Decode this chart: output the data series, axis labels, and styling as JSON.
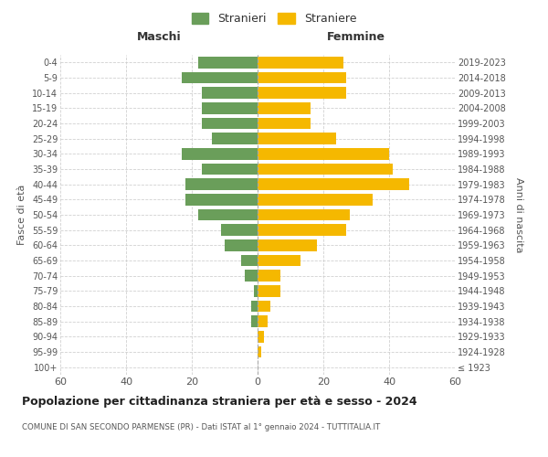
{
  "age_groups": [
    "100+",
    "95-99",
    "90-94",
    "85-89",
    "80-84",
    "75-79",
    "70-74",
    "65-69",
    "60-64",
    "55-59",
    "50-54",
    "45-49",
    "40-44",
    "35-39",
    "30-34",
    "25-29",
    "20-24",
    "15-19",
    "10-14",
    "5-9",
    "0-4"
  ],
  "birth_years": [
    "≤ 1923",
    "1924-1928",
    "1929-1933",
    "1934-1938",
    "1939-1943",
    "1944-1948",
    "1949-1953",
    "1954-1958",
    "1959-1963",
    "1964-1968",
    "1969-1973",
    "1974-1978",
    "1979-1983",
    "1984-1988",
    "1989-1993",
    "1994-1998",
    "1999-2003",
    "2004-2008",
    "2009-2013",
    "2014-2018",
    "2019-2023"
  ],
  "maschi": [
    0,
    0,
    0,
    2,
    2,
    1,
    4,
    5,
    10,
    11,
    18,
    22,
    22,
    17,
    23,
    14,
    17,
    17,
    17,
    23,
    18
  ],
  "femmine": [
    0,
    1,
    2,
    3,
    4,
    7,
    7,
    13,
    18,
    27,
    28,
    35,
    46,
    41,
    40,
    24,
    16,
    16,
    27,
    27,
    26
  ],
  "maschi_color": "#6a9e5a",
  "femmine_color": "#f5b800",
  "background_color": "#ffffff",
  "grid_color": "#cccccc",
  "title": "Popolazione per cittadinanza straniera per età e sesso - 2024",
  "subtitle": "COMUNE DI SAN SECONDO PARMENSE (PR) - Dati ISTAT al 1° gennaio 2024 - TUTTITALIA.IT",
  "xlabel_left": "Maschi",
  "xlabel_right": "Femmine",
  "ylabel_left": "Fasce di età",
  "ylabel_right": "Anni di nascita",
  "xlim": 60,
  "legend_maschi": "Stranieri",
  "legend_femmine": "Straniere"
}
